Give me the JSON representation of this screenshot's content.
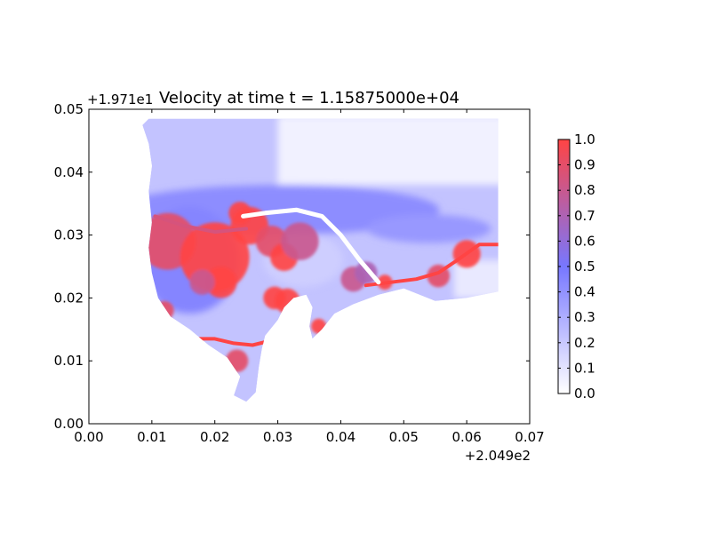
{
  "chart_data": {
    "type": "heatmap",
    "title": "Velocity at time t = 1.15875000e+04",
    "xlabel": "",
    "ylabel": "",
    "xlim": [
      0.0,
      0.07
    ],
    "ylim": [
      0.0,
      0.05
    ],
    "x_offset_label": "+2.049e2",
    "y_offset_label": "+1.971e1",
    "x_ticks": [
      0.0,
      0.01,
      0.02,
      0.03,
      0.04,
      0.05,
      0.06,
      0.07
    ],
    "x_tick_labels": [
      "0.00",
      "0.01",
      "0.02",
      "0.03",
      "0.04",
      "0.05",
      "0.06",
      "0.07"
    ],
    "y_ticks": [
      0.0,
      0.01,
      0.02,
      0.03,
      0.04,
      0.05
    ],
    "y_tick_labels": [
      "0.00",
      "0.01",
      "0.02",
      "0.03",
      "0.04",
      "0.05"
    ],
    "colorbar": {
      "min": 0.0,
      "max": 1.0,
      "ticks": [
        0.0,
        0.1,
        0.2,
        0.3,
        0.4,
        0.5,
        0.6,
        0.7,
        0.8,
        0.9,
        1.0
      ],
      "tick_labels": [
        "0.0",
        "0.1",
        "0.2",
        "0.3",
        "0.4",
        "0.5",
        "0.6",
        "0.7",
        "0.8",
        "0.9",
        "1.0"
      ],
      "colors": [
        "#ffffff",
        "#7777ff",
        "#ff4444"
      ]
    },
    "domain_outline": [
      [
        0.0085,
        0.0475
      ],
      [
        0.0095,
        0.0485
      ],
      [
        0.065,
        0.0485
      ],
      [
        0.065,
        0.021
      ],
      [
        0.06,
        0.02
      ],
      [
        0.055,
        0.0195
      ],
      [
        0.05,
        0.0215
      ],
      [
        0.046,
        0.0205
      ],
      [
        0.042,
        0.019
      ],
      [
        0.039,
        0.0175
      ],
      [
        0.037,
        0.015
      ],
      [
        0.0355,
        0.0135
      ],
      [
        0.035,
        0.0155
      ],
      [
        0.0355,
        0.0185
      ],
      [
        0.0345,
        0.0205
      ],
      [
        0.0325,
        0.02
      ],
      [
        0.031,
        0.0185
      ],
      [
        0.03,
        0.0165
      ],
      [
        0.028,
        0.014
      ],
      [
        0.0275,
        0.012
      ],
      [
        0.027,
        0.009
      ],
      [
        0.0265,
        0.005
      ],
      [
        0.025,
        0.0035
      ],
      [
        0.023,
        0.0045
      ],
      [
        0.024,
        0.0075
      ],
      [
        0.022,
        0.0105
      ],
      [
        0.019,
        0.0125
      ],
      [
        0.016,
        0.015
      ],
      [
        0.013,
        0.017
      ],
      [
        0.011,
        0.02
      ],
      [
        0.01,
        0.024
      ],
      [
        0.0095,
        0.028
      ],
      [
        0.01,
        0.032
      ],
      [
        0.0095,
        0.037
      ],
      [
        0.01,
        0.041
      ],
      [
        0.0095,
        0.0445
      ]
    ],
    "velocity_hotspots": [
      {
        "x": 0.0125,
        "y": 0.029,
        "r": 0.0045,
        "v": 0.9
      },
      {
        "x": 0.02,
        "y": 0.0265,
        "r": 0.0055,
        "v": 1.0
      },
      {
        "x": 0.021,
        "y": 0.0225,
        "r": 0.0025,
        "v": 1.0
      },
      {
        "x": 0.0255,
        "y": 0.0315,
        "r": 0.003,
        "v": 1.0
      },
      {
        "x": 0.024,
        "y": 0.0335,
        "r": 0.0018,
        "v": 1.0
      },
      {
        "x": 0.029,
        "y": 0.029,
        "r": 0.0025,
        "v": 0.9
      },
      {
        "x": 0.031,
        "y": 0.0265,
        "r": 0.0022,
        "v": 1.0
      },
      {
        "x": 0.0335,
        "y": 0.029,
        "r": 0.003,
        "v": 0.8
      },
      {
        "x": 0.0295,
        "y": 0.02,
        "r": 0.0018,
        "v": 1.0
      },
      {
        "x": 0.0315,
        "y": 0.0195,
        "r": 0.002,
        "v": 1.0
      },
      {
        "x": 0.0365,
        "y": 0.0155,
        "r": 0.0012,
        "v": 1.0
      },
      {
        "x": 0.042,
        "y": 0.023,
        "r": 0.002,
        "v": 0.8
      },
      {
        "x": 0.044,
        "y": 0.024,
        "r": 0.0018,
        "v": 0.7
      },
      {
        "x": 0.018,
        "y": 0.0225,
        "r": 0.002,
        "v": 0.8
      },
      {
        "x": 0.0235,
        "y": 0.01,
        "r": 0.0018,
        "v": 0.9
      },
      {
        "x": 0.06,
        "y": 0.027,
        "r": 0.0022,
        "v": 1.0
      },
      {
        "x": 0.0555,
        "y": 0.0235,
        "r": 0.0018,
        "v": 0.9
      },
      {
        "x": 0.047,
        "y": 0.0225,
        "r": 0.0012,
        "v": 1.0
      },
      {
        "x": 0.012,
        "y": 0.018,
        "r": 0.0015,
        "v": 0.9
      }
    ],
    "high_velocity_streaks": [
      {
        "points": [
          [
            0.017,
            0.0135
          ],
          [
            0.02,
            0.0135
          ],
          [
            0.023,
            0.0128
          ],
          [
            0.026,
            0.0125
          ],
          [
            0.028,
            0.013
          ]
        ],
        "v": 1.0
      },
      {
        "points": [
          [
            0.044,
            0.022
          ],
          [
            0.048,
            0.0225
          ],
          [
            0.052,
            0.023
          ],
          [
            0.0555,
            0.024
          ],
          [
            0.0585,
            0.026
          ],
          [
            0.062,
            0.0285
          ],
          [
            0.065,
            0.0285
          ]
        ],
        "v": 1.0
      },
      {
        "points": [
          [
            0.0105,
            0.033
          ],
          [
            0.015,
            0.0315
          ],
          [
            0.02,
            0.0305
          ],
          [
            0.025,
            0.031
          ]
        ],
        "v": 0.85
      }
    ],
    "dry_channel": [
      [
        0.0245,
        0.033
      ],
      [
        0.028,
        0.0335
      ],
      [
        0.033,
        0.034
      ],
      [
        0.037,
        0.033
      ],
      [
        0.04,
        0.03
      ],
      [
        0.043,
        0.026
      ],
      [
        0.046,
        0.0225
      ]
    ]
  }
}
